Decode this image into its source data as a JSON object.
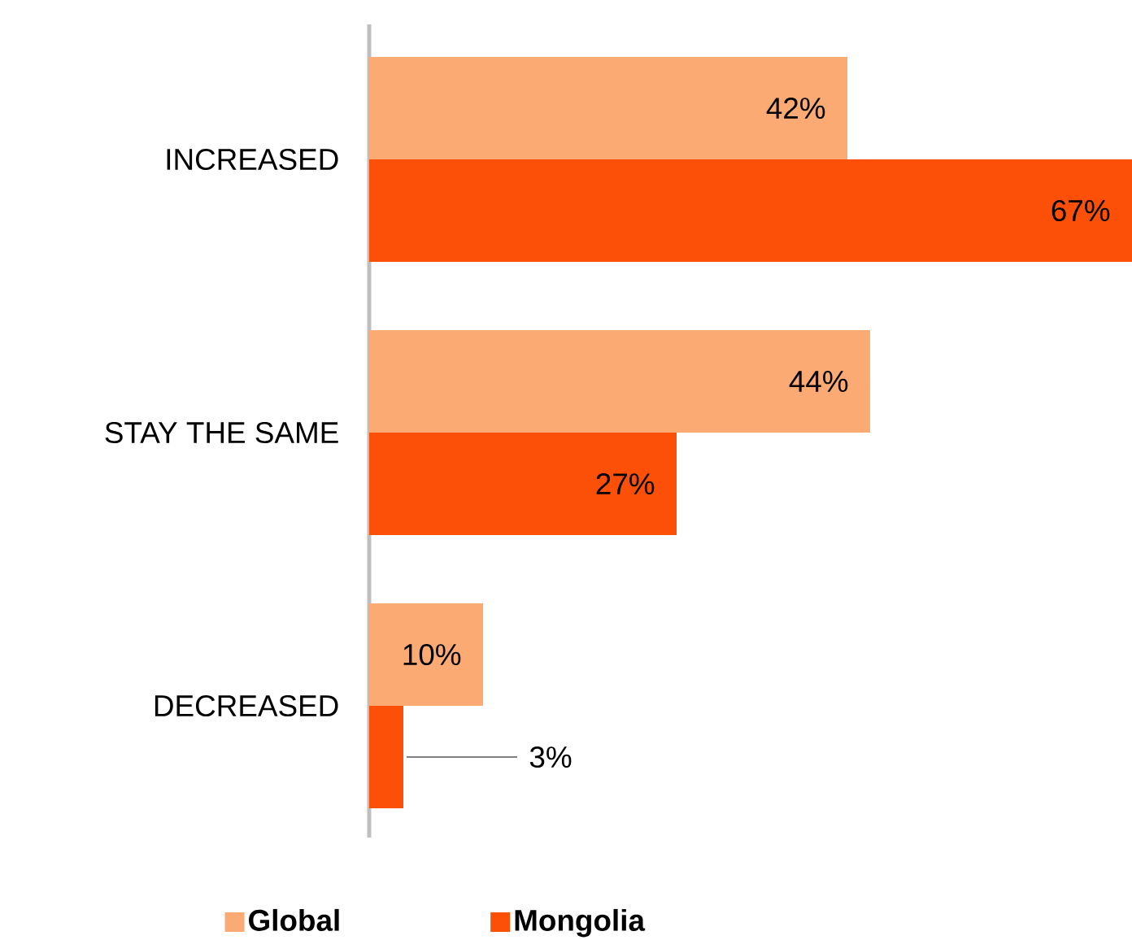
{
  "chart_data": {
    "type": "bar",
    "orientation": "horizontal",
    "legend": "bottom",
    "categories": [
      "INCREASED",
      "STAY THE SAME",
      "DECREASED"
    ],
    "series": [
      {
        "name": "Global",
        "color": "#fcaa74",
        "values": [
          42,
          44,
          10
        ],
        "value_labels": [
          "42%",
          "44%",
          "10%"
        ]
      },
      {
        "name": "Mongolia",
        "color": "#fc5009",
        "values": [
          67,
          27,
          3
        ],
        "value_labels": [
          "67%",
          "27%",
          "3%"
        ]
      }
    ]
  }
}
